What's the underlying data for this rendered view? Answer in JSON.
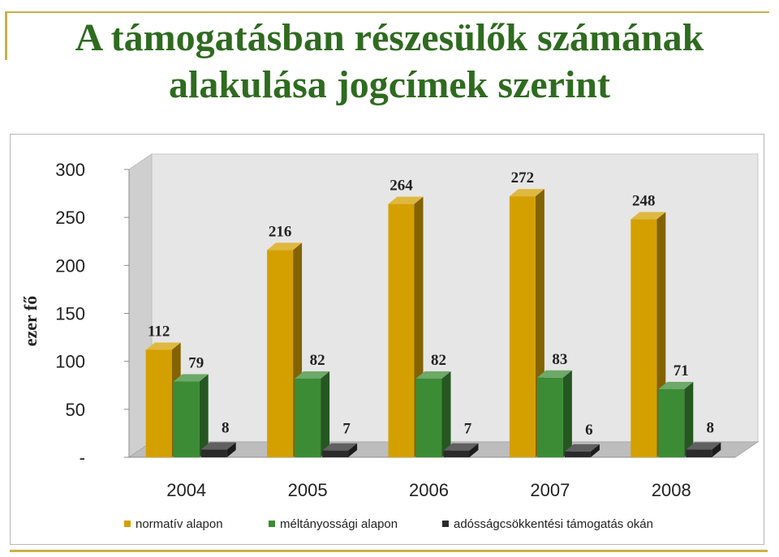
{
  "slide": {
    "title_line1": "A támogatásban részesülők számának",
    "title_line2": "alakulása jogcímek szerint"
  },
  "chart_data": {
    "type": "bar",
    "title": "",
    "xlabel": "",
    "ylabel": "ezer fő",
    "ylim": [
      0,
      300
    ],
    "y_ticks": [
      {
        "value": 0,
        "label": "-"
      },
      {
        "value": 50,
        "label": "50"
      },
      {
        "value": 100,
        "label": "100"
      },
      {
        "value": 150,
        "label": "150"
      },
      {
        "value": 200,
        "label": "200"
      },
      {
        "value": 250,
        "label": "250"
      },
      {
        "value": 300,
        "label": "300"
      }
    ],
    "categories": [
      "2004",
      "2005",
      "2006",
      "2007",
      "2008"
    ],
    "series": [
      {
        "name": "normatív alapon",
        "color": "#d4a000",
        "values": [
          112,
          216,
          264,
          272,
          248
        ]
      },
      {
        "name": "méltányossági alapon",
        "color": "#3c8c35",
        "values": [
          79,
          82,
          82,
          83,
          71
        ]
      },
      {
        "name": "adósságcsökkentési támogatás okán",
        "color": "#2b2b2b",
        "values": [
          8,
          7,
          7,
          6,
          8
        ]
      }
    ],
    "legend_position": "bottom",
    "grid": false,
    "style": "3d-columns"
  }
}
